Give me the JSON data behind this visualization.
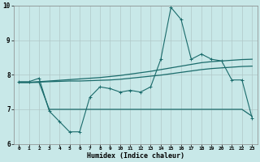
{
  "xlabel": "Humidex (Indice chaleur)",
  "xlim": [
    -0.5,
    23.5
  ],
  "ylim": [
    6,
    10
  ],
  "xticks": [
    0,
    1,
    2,
    3,
    4,
    5,
    6,
    7,
    8,
    9,
    10,
    11,
    12,
    13,
    14,
    15,
    16,
    17,
    18,
    19,
    20,
    21,
    22,
    23
  ],
  "yticks": [
    6,
    7,
    8,
    9,
    10
  ],
  "background_color": "#c8e8e8",
  "grid_color": "#b0c8c8",
  "line_color": "#1a6b6b",
  "line1_x": [
    0,
    1,
    2,
    3,
    4,
    5,
    6,
    7,
    8,
    9,
    10,
    11,
    12,
    13,
    14,
    15,
    16,
    17,
    18,
    19,
    20,
    21,
    22,
    23
  ],
  "line1_y": [
    7.8,
    7.8,
    7.9,
    6.95,
    6.65,
    6.35,
    6.35,
    7.35,
    7.65,
    7.6,
    7.5,
    7.55,
    7.5,
    7.65,
    8.45,
    9.95,
    9.6,
    8.45,
    8.6,
    8.45,
    8.4,
    7.85,
    7.85,
    6.75
  ],
  "line2_x": [
    0,
    1,
    2,
    3,
    4,
    5,
    6,
    7,
    8,
    9,
    10,
    11,
    12,
    13,
    14,
    15,
    16,
    17,
    18,
    19,
    20,
    21,
    22,
    23
  ],
  "line2_y": [
    7.78,
    7.78,
    7.8,
    7.82,
    7.84,
    7.86,
    7.88,
    7.9,
    7.92,
    7.95,
    7.98,
    8.02,
    8.06,
    8.1,
    8.15,
    8.2,
    8.25,
    8.3,
    8.35,
    8.38,
    8.4,
    8.42,
    8.44,
    8.45
  ],
  "line3_x": [
    0,
    1,
    2,
    3,
    4,
    5,
    6,
    7,
    8,
    9,
    10,
    11,
    12,
    13,
    14,
    15,
    16,
    17,
    18,
    19,
    20,
    21,
    22,
    23
  ],
  "line3_y": [
    7.78,
    7.78,
    7.79,
    7.8,
    7.81,
    7.82,
    7.82,
    7.83,
    7.84,
    7.85,
    7.87,
    7.9,
    7.93,
    7.96,
    7.99,
    8.03,
    8.07,
    8.11,
    8.15,
    8.18,
    8.2,
    8.22,
    8.24,
    8.25
  ],
  "line4_x": [
    0,
    1,
    2,
    3,
    4,
    5,
    6,
    7,
    8,
    9,
    10,
    11,
    12,
    13,
    14,
    15,
    16,
    17,
    18,
    19,
    20,
    21,
    22,
    23
  ],
  "line4_y": [
    7.78,
    7.78,
    7.78,
    7.0,
    7.0,
    7.0,
    7.0,
    7.0,
    7.0,
    7.0,
    7.0,
    7.0,
    7.0,
    7.0,
    7.0,
    7.0,
    7.0,
    7.0,
    7.0,
    7.0,
    7.0,
    7.0,
    7.0,
    6.8
  ]
}
